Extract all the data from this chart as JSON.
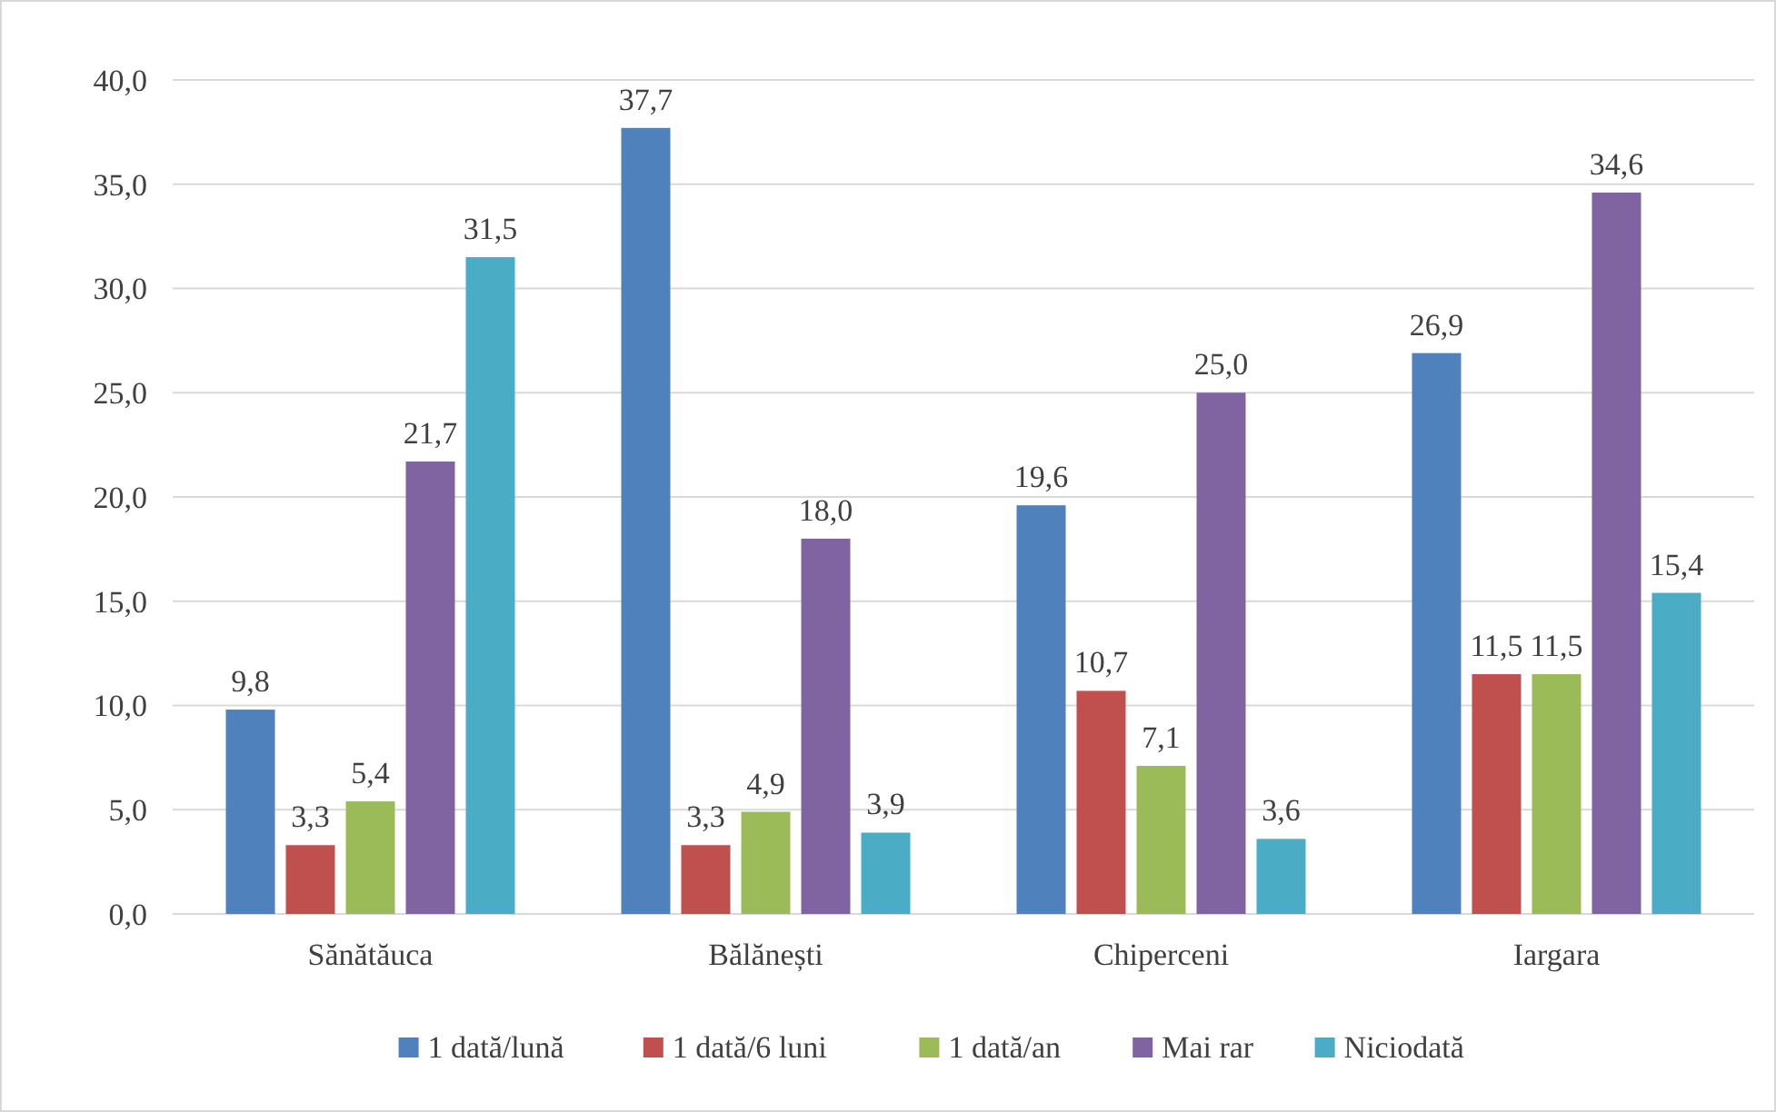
{
  "chart_data": {
    "type": "bar",
    "categories": [
      "Sănătăuca",
      "Bălănești",
      "Chiperceni",
      "Iargara"
    ],
    "series": [
      {
        "name": "1 dată/lună",
        "color": "#4f81bd",
        "values": [
          9.8,
          37.7,
          19.6,
          26.9
        ],
        "value_labels": [
          "9,8",
          "37,7",
          "19,6",
          "26,9"
        ]
      },
      {
        "name": "1 dată/6 luni",
        "color": "#c0504d",
        "values": [
          3.3,
          3.3,
          10.7,
          11.5
        ],
        "value_labels": [
          "3,3",
          "3,3",
          "10,7",
          "11,5"
        ]
      },
      {
        "name": "1 dată/an",
        "color": "#9bbb59",
        "values": [
          5.4,
          4.9,
          7.1,
          11.5
        ],
        "value_labels": [
          "5,4",
          "4,9",
          "7,1",
          "11,5"
        ]
      },
      {
        "name": "Mai rar",
        "color": "#8064a2",
        "values": [
          21.7,
          18.0,
          25.0,
          34.6
        ],
        "value_labels": [
          "21,7",
          "18,0",
          "25,0",
          "34,6"
        ]
      },
      {
        "name": "Niciodată",
        "color": "#4bacc6",
        "values": [
          31.5,
          3.9,
          3.6,
          15.4
        ],
        "value_labels": [
          "31,5",
          "3,9",
          "3,6",
          "15,4"
        ]
      }
    ],
    "ylim": [
      0,
      40
    ],
    "yticks": [
      {
        "value": 0,
        "label": "0,0"
      },
      {
        "value": 5,
        "label": "5,0"
      },
      {
        "value": 10,
        "label": "10,0"
      },
      {
        "value": 15,
        "label": "15,0"
      },
      {
        "value": 20,
        "label": "20,0"
      },
      {
        "value": 25,
        "label": "25,0"
      },
      {
        "value": 30,
        "label": "30,0"
      },
      {
        "value": 35,
        "label": "35,0"
      },
      {
        "value": 40,
        "label": "40,0"
      }
    ],
    "grid": "y",
    "legend": "bottom"
  }
}
